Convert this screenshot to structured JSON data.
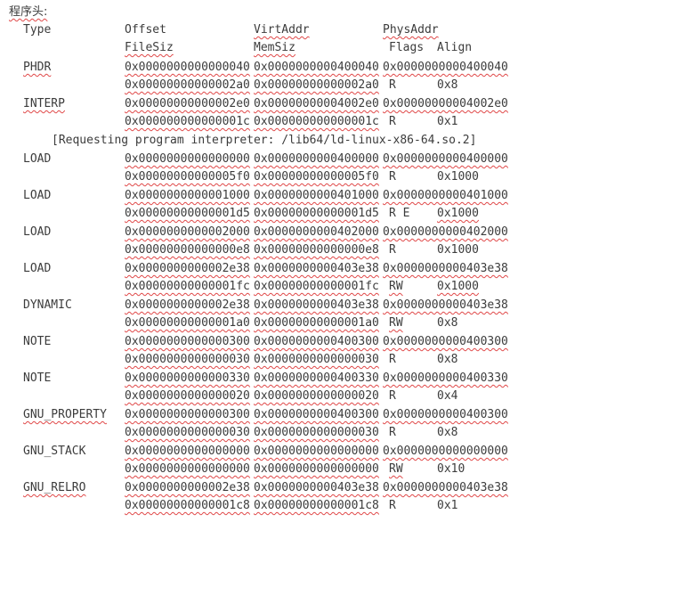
{
  "title": "程序头:",
  "header": {
    "type": "Type",
    "offset": "Offset",
    "virtaddr": "VirtAddr",
    "physaddr": "PhysAddr",
    "filesiz": "FileSiz",
    "memsiz": "MemSiz",
    "flags": "Flags",
    "align": "Align"
  },
  "segments": [
    {
      "type": "PHDR",
      "offset": "0x0000000000000040",
      "virtaddr": "0x0000000000400040",
      "physaddr": "0x0000000000400040",
      "filesiz": "0x00000000000002a0",
      "memsiz": "0x00000000000002a0",
      "flags": "R",
      "align": "0x8"
    },
    {
      "type": "INTERP",
      "offset": "0x00000000000002e0",
      "virtaddr": "0x00000000004002e0",
      "physaddr": "0x00000000004002e0",
      "filesiz": "0x000000000000001c",
      "memsiz": "0x000000000000001c",
      "flags": "R",
      "align": "0x1"
    },
    {
      "type": "LOAD",
      "offset": "0x0000000000000000",
      "virtaddr": "0x0000000000400000",
      "physaddr": "0x0000000000400000",
      "filesiz": "0x00000000000005f0",
      "memsiz": "0x00000000000005f0",
      "flags": "R",
      "align": "0x1000"
    },
    {
      "type": "LOAD",
      "offset": "0x0000000000001000",
      "virtaddr": "0x0000000000401000",
      "physaddr": "0x0000000000401000",
      "filesiz": "0x00000000000001d5",
      "memsiz": "0x00000000000001d5",
      "flags": "R E",
      "align": "0x1000"
    },
    {
      "type": "LOAD",
      "offset": "0x0000000000002000",
      "virtaddr": "0x0000000000402000",
      "physaddr": "0x0000000000402000",
      "filesiz": "0x00000000000000e8",
      "memsiz": "0x00000000000000e8",
      "flags": "R",
      "align": "0x1000"
    },
    {
      "type": "LOAD",
      "offset": "0x0000000000002e38",
      "virtaddr": "0x0000000000403e38",
      "physaddr": "0x0000000000403e38",
      "filesiz": "0x00000000000001fc",
      "memsiz": "0x00000000000001fc",
      "flags": "RW",
      "align": "0x1000"
    },
    {
      "type": "DYNAMIC",
      "offset": "0x0000000000002e38",
      "virtaddr": "0x0000000000403e38",
      "physaddr": "0x0000000000403e38",
      "filesiz": "0x00000000000001a0",
      "memsiz": "0x00000000000001a0",
      "flags": "RW",
      "align": "0x8"
    },
    {
      "type": "NOTE",
      "offset": "0x0000000000000300",
      "virtaddr": "0x0000000000400300",
      "physaddr": "0x0000000000400300",
      "filesiz": "0x0000000000000030",
      "memsiz": "0x0000000000000030",
      "flags": "R",
      "align": "0x8"
    },
    {
      "type": "NOTE",
      "offset": "0x0000000000000330",
      "virtaddr": "0x0000000000400330",
      "physaddr": "0x0000000000400330",
      "filesiz": "0x0000000000000020",
      "memsiz": "0x0000000000000020",
      "flags": "R",
      "align": "0x4"
    },
    {
      "type": "GNU_PROPERTY",
      "offset": "0x0000000000000300",
      "virtaddr": "0x0000000000400300",
      "physaddr": "0x0000000000400300",
      "filesiz": "0x0000000000000030",
      "memsiz": "0x0000000000000030",
      "flags": "R",
      "align": "0x8"
    },
    {
      "type": "GNU_STACK",
      "offset": "0x0000000000000000",
      "virtaddr": "0x0000000000000000",
      "physaddr": "0x0000000000000000",
      "filesiz": "0x0000000000000000",
      "memsiz": "0x0000000000000000",
      "flags": "RW",
      "align": "0x10"
    },
    {
      "type": "GNU_RELRO",
      "offset": "0x0000000000002e38",
      "virtaddr": "0x0000000000403e38",
      "physaddr": "0x0000000000403e38",
      "filesiz": "0x00000000000001c8",
      "memsiz": "0x00000000000001c8",
      "flags": "R",
      "align": "0x1"
    }
  ],
  "interp_note": "[Requesting program interpreter: /lib64/ld-linux-x86-64.so.2]"
}
